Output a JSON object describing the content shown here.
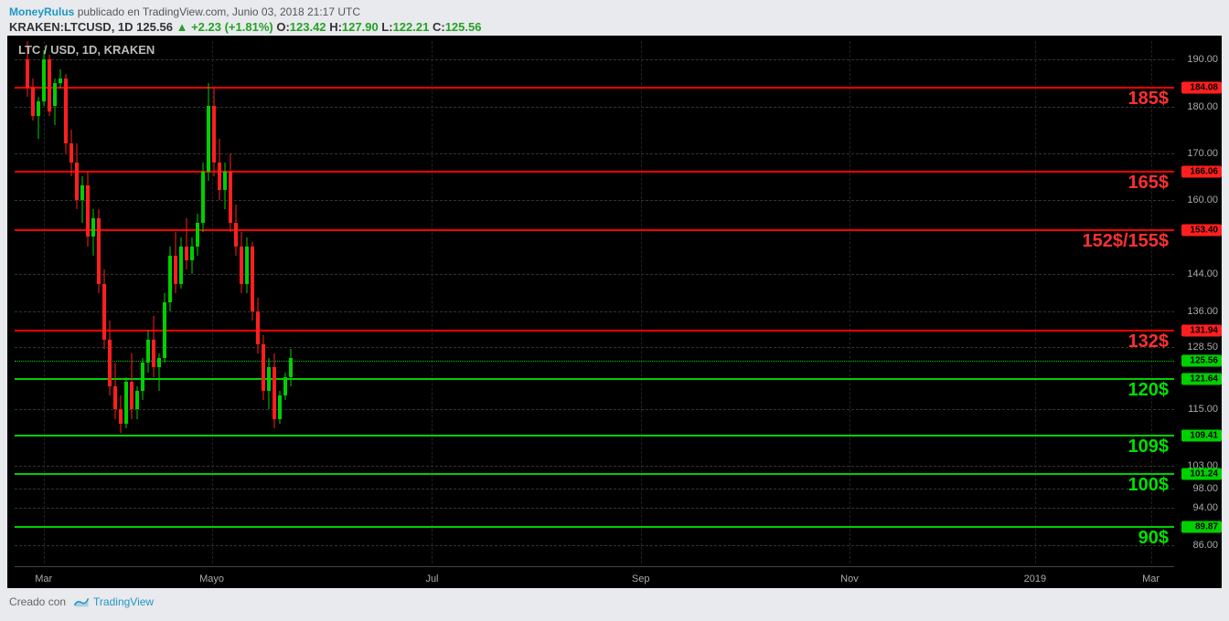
{
  "header": {
    "author": "MoneyRulus",
    "published": "publicado en TradingView.com, Junio 03, 2018 21:17 UTC",
    "symbol": "KRAKEN:LTCUSD, 1D",
    "last": "125.56",
    "change": "+2.23",
    "pct": "(+1.81%)",
    "o_lbl": "O:",
    "o": "123.42",
    "h_lbl": "H:",
    "h": "127.90",
    "l_lbl": "L:",
    "l": "122.21",
    "c_lbl": "C:",
    "c": "125.56"
  },
  "chart": {
    "title": "LTC / USD, 1D, KRAKEN",
    "type": "candlestick",
    "background_color": "#000000",
    "grid_color": "#333333",
    "up_color": "#00d000",
    "down_color": "#ff1f1f",
    "y_axis": {
      "min": 82,
      "max": 194,
      "ticks": [
        190,
        180,
        170,
        160,
        144,
        136,
        128.5,
        115,
        103,
        98,
        94,
        86
      ],
      "tick_labels": [
        "190.00",
        "180.00",
        "170.00",
        "160.00",
        "144.00",
        "136.00",
        "128.50",
        "115.00",
        "103.00",
        "98.00",
        "94.00",
        "86.00"
      ]
    },
    "current_price_line": {
      "value": 125.56,
      "color": "#00d000",
      "tag": "125.56"
    },
    "resistance_lines": [
      {
        "value": 184.08,
        "label": "185$",
        "tag": "184.08"
      },
      {
        "value": 166.06,
        "label": "165$",
        "tag": "166.06"
      },
      {
        "value": 153.4,
        "label": "152$/155$",
        "tag": "153.40"
      },
      {
        "value": 131.94,
        "label": "132$",
        "tag": "131.94"
      }
    ],
    "support_lines": [
      {
        "value": 121.64,
        "label": "120$",
        "tag": "121.64"
      },
      {
        "value": 109.41,
        "label": "109$",
        "tag": "109.41"
      },
      {
        "value": 101.24,
        "label": "100$",
        "tag": "101.24"
      },
      {
        "value": 89.87,
        "label": "90$",
        "tag": "89.87"
      }
    ],
    "x_axis": {
      "labels": [
        "Mar",
        "Mayo",
        "Jul",
        "Sep",
        "Nov",
        "2019",
        "Mar"
      ],
      "positions_pct": [
        2.5,
        17,
        36,
        54,
        72,
        88,
        98
      ]
    },
    "candles": [
      {
        "x": 0.5,
        "o": 190,
        "h": 194,
        "l": 182,
        "c": 184,
        "d": "down"
      },
      {
        "x": 1.0,
        "o": 184,
        "h": 186,
        "l": 177,
        "c": 178,
        "d": "down"
      },
      {
        "x": 1.5,
        "o": 178,
        "h": 182,
        "l": 173,
        "c": 181,
        "d": "up"
      },
      {
        "x": 2.0,
        "o": 181,
        "h": 192,
        "l": 180,
        "c": 190,
        "d": "up"
      },
      {
        "x": 2.5,
        "o": 190,
        "h": 191,
        "l": 178,
        "c": 179,
        "d": "down"
      },
      {
        "x": 3.0,
        "o": 180,
        "h": 186,
        "l": 176,
        "c": 185,
        "d": "up"
      },
      {
        "x": 3.5,
        "o": 185,
        "h": 188,
        "l": 184,
        "c": 186,
        "d": "up"
      },
      {
        "x": 4.0,
        "o": 186,
        "h": 187,
        "l": 170,
        "c": 172,
        "d": "down"
      },
      {
        "x": 4.5,
        "o": 172,
        "h": 175,
        "l": 165,
        "c": 168,
        "d": "down"
      },
      {
        "x": 5.0,
        "o": 168,
        "h": 172,
        "l": 158,
        "c": 160,
        "d": "down"
      },
      {
        "x": 5.5,
        "o": 160,
        "h": 165,
        "l": 155,
        "c": 163,
        "d": "up"
      },
      {
        "x": 6.0,
        "o": 163,
        "h": 166,
        "l": 150,
        "c": 152,
        "d": "down"
      },
      {
        "x": 6.5,
        "o": 152,
        "h": 158,
        "l": 148,
        "c": 156,
        "d": "up"
      },
      {
        "x": 7.0,
        "o": 156,
        "h": 158,
        "l": 140,
        "c": 142,
        "d": "down"
      },
      {
        "x": 7.5,
        "o": 142,
        "h": 145,
        "l": 128,
        "c": 130,
        "d": "down"
      },
      {
        "x": 8.0,
        "o": 130,
        "h": 134,
        "l": 118,
        "c": 120,
        "d": "down"
      },
      {
        "x": 8.5,
        "o": 120,
        "h": 125,
        "l": 113,
        "c": 115,
        "d": "down"
      },
      {
        "x": 9.0,
        "o": 115,
        "h": 118,
        "l": 110,
        "c": 112,
        "d": "down"
      },
      {
        "x": 9.5,
        "o": 112,
        "h": 122,
        "l": 111,
        "c": 121,
        "d": "up"
      },
      {
        "x": 10.0,
        "o": 121,
        "h": 127,
        "l": 113,
        "c": 115,
        "d": "down"
      },
      {
        "x": 10.5,
        "o": 115,
        "h": 120,
        "l": 113,
        "c": 119,
        "d": "up"
      },
      {
        "x": 11.0,
        "o": 119,
        "h": 126,
        "l": 117,
        "c": 125,
        "d": "up"
      },
      {
        "x": 11.5,
        "o": 125,
        "h": 132,
        "l": 123,
        "c": 130,
        "d": "up"
      },
      {
        "x": 12.0,
        "o": 130,
        "h": 135,
        "l": 122,
        "c": 124,
        "d": "down"
      },
      {
        "x": 12.5,
        "o": 124,
        "h": 127,
        "l": 119,
        "c": 126,
        "d": "up"
      },
      {
        "x": 13.0,
        "o": 126,
        "h": 140,
        "l": 125,
        "c": 138,
        "d": "up"
      },
      {
        "x": 13.5,
        "o": 138,
        "h": 150,
        "l": 136,
        "c": 148,
        "d": "up"
      },
      {
        "x": 14.0,
        "o": 148,
        "h": 153,
        "l": 140,
        "c": 142,
        "d": "down"
      },
      {
        "x": 14.5,
        "o": 142,
        "h": 152,
        "l": 141,
        "c": 150,
        "d": "up"
      },
      {
        "x": 15.0,
        "o": 150,
        "h": 156,
        "l": 145,
        "c": 147,
        "d": "down"
      },
      {
        "x": 15.5,
        "o": 147,
        "h": 152,
        "l": 144,
        "c": 150,
        "d": "up"
      },
      {
        "x": 16.0,
        "o": 150,
        "h": 157,
        "l": 148,
        "c": 155,
        "d": "up"
      },
      {
        "x": 16.5,
        "o": 155,
        "h": 168,
        "l": 153,
        "c": 166,
        "d": "up"
      },
      {
        "x": 17.0,
        "o": 166,
        "h": 185,
        "l": 164,
        "c": 180,
        "d": "up"
      },
      {
        "x": 17.5,
        "o": 180,
        "h": 184,
        "l": 165,
        "c": 168,
        "d": "down"
      },
      {
        "x": 18.0,
        "o": 168,
        "h": 173,
        "l": 160,
        "c": 162,
        "d": "down"
      },
      {
        "x": 18.5,
        "o": 162,
        "h": 168,
        "l": 158,
        "c": 166,
        "d": "up"
      },
      {
        "x": 19.0,
        "o": 166,
        "h": 170,
        "l": 153,
        "c": 155,
        "d": "down"
      },
      {
        "x": 19.5,
        "o": 155,
        "h": 159,
        "l": 148,
        "c": 150,
        "d": "down"
      },
      {
        "x": 20.0,
        "o": 150,
        "h": 153,
        "l": 140,
        "c": 142,
        "d": "down"
      },
      {
        "x": 20.5,
        "o": 142,
        "h": 152,
        "l": 140,
        "c": 150,
        "d": "up"
      },
      {
        "x": 21.0,
        "o": 150,
        "h": 151,
        "l": 134,
        "c": 136,
        "d": "down"
      },
      {
        "x": 21.5,
        "o": 136,
        "h": 139,
        "l": 127,
        "c": 129,
        "d": "down"
      },
      {
        "x": 22.0,
        "o": 129,
        "h": 131,
        "l": 117,
        "c": 119,
        "d": "down"
      },
      {
        "x": 22.5,
        "o": 119,
        "h": 126,
        "l": 115,
        "c": 124,
        "d": "up"
      },
      {
        "x": 23.0,
        "o": 124,
        "h": 127,
        "l": 111,
        "c": 113,
        "d": "down"
      },
      {
        "x": 23.5,
        "o": 113,
        "h": 119,
        "l": 112,
        "c": 118,
        "d": "up"
      },
      {
        "x": 24.0,
        "o": 118,
        "h": 123,
        "l": 117,
        "c": 122,
        "d": "up"
      },
      {
        "x": 24.5,
        "o": 122,
        "h": 128,
        "l": 120,
        "c": 126,
        "d": "up"
      }
    ]
  },
  "footer": {
    "created_with": "Creado con",
    "tv": "TradingView"
  }
}
